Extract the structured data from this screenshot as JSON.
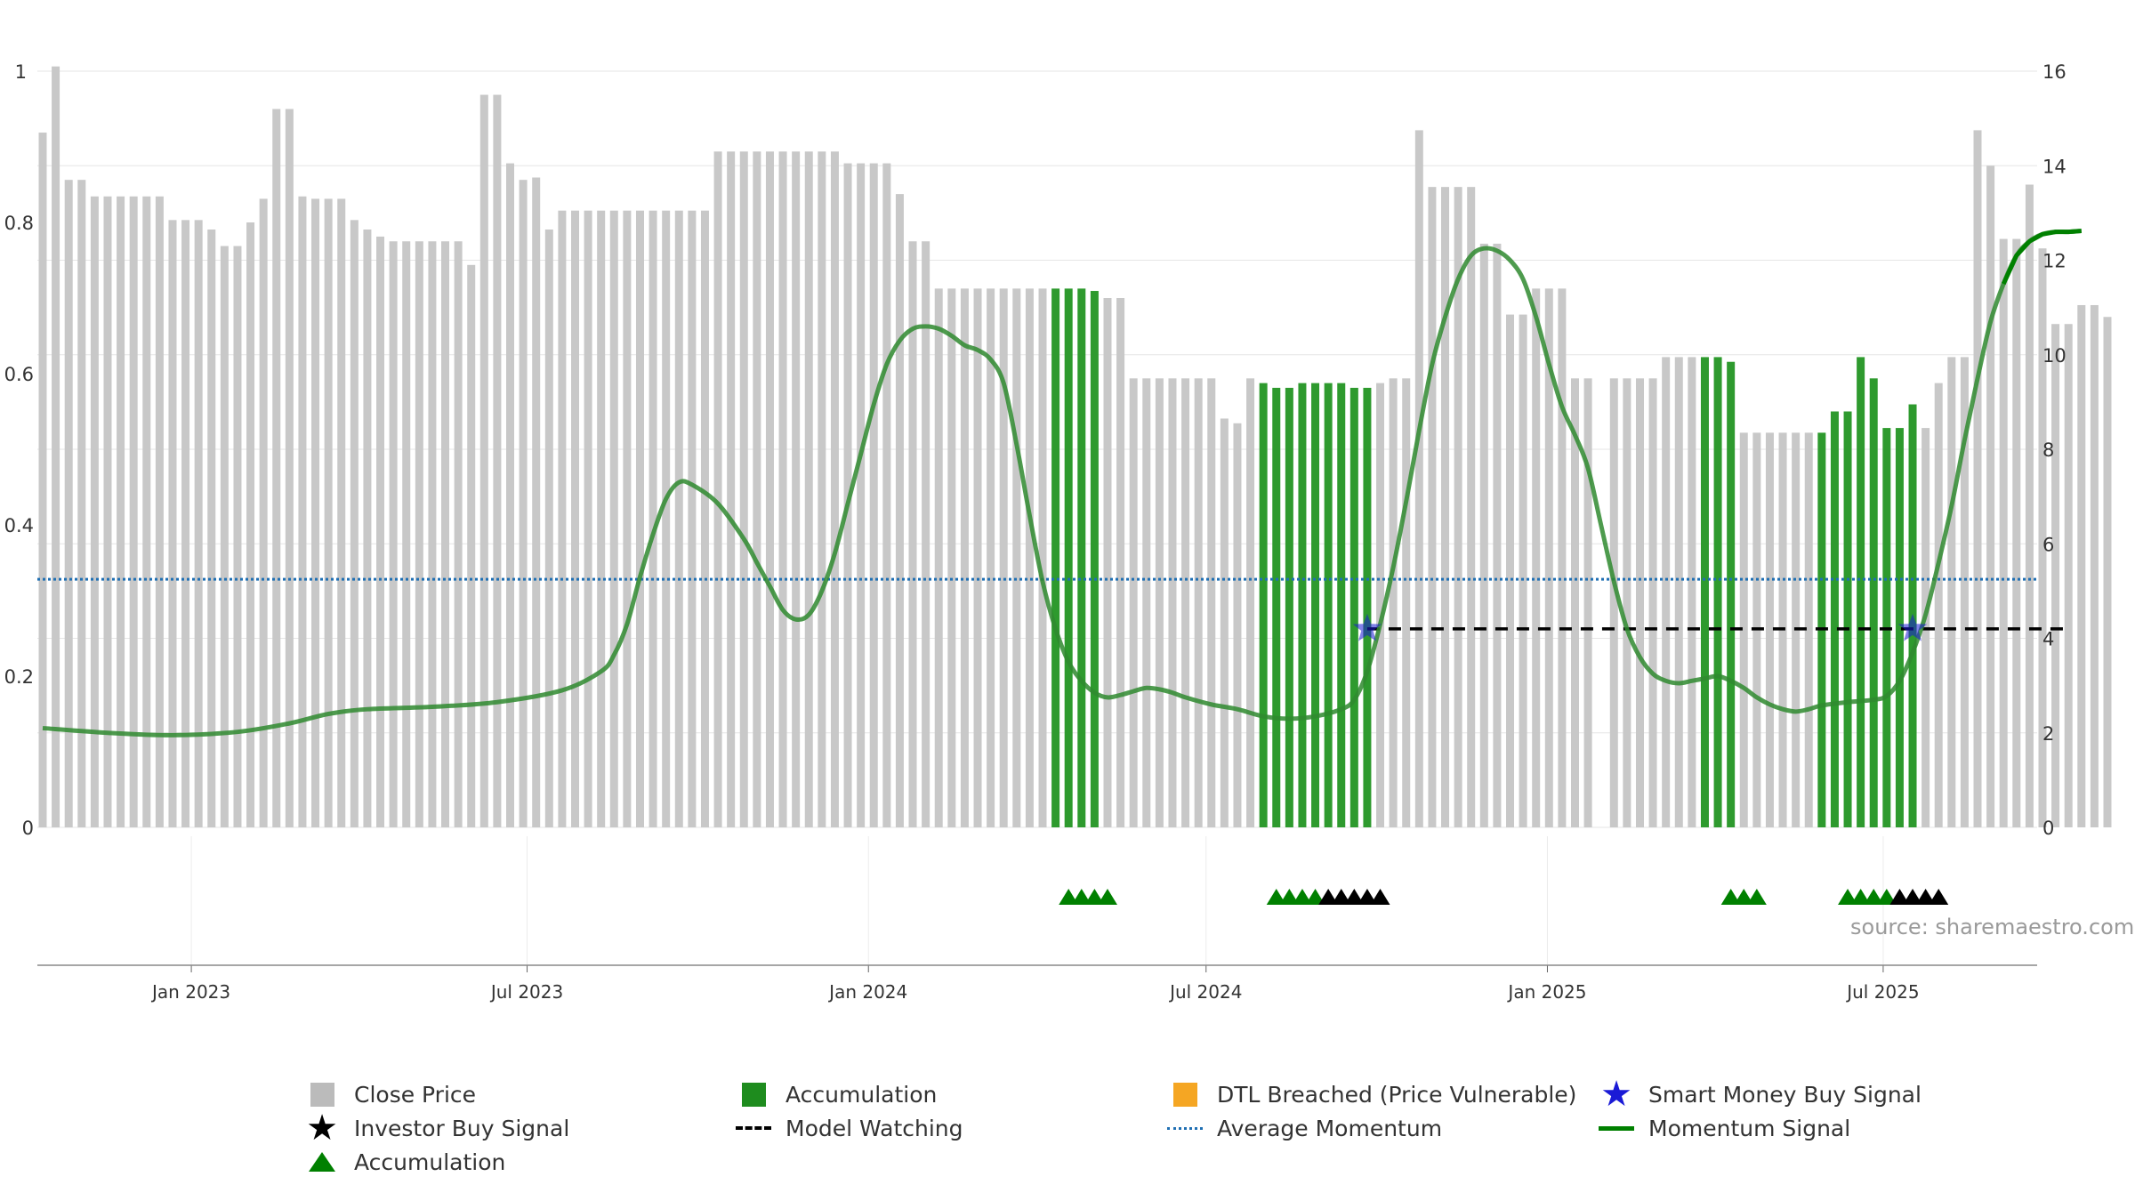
{
  "chart_data": {
    "type": "bar",
    "source_text": "source: sharemaestro.com",
    "x_ticks": [
      "Jan 2023",
      "Jul 2023",
      "Jan 2024",
      "Jul 2024",
      "Jan 2025",
      "Jul 2025"
    ],
    "x_range": [
      "2022-10-10",
      "2025-09-22"
    ],
    "left_axis": {
      "ticks": [
        "0",
        "0.2",
        "0.4",
        "0.6",
        "0.8",
        "1"
      ],
      "ylim": [
        0,
        1
      ]
    },
    "right_axis": {
      "ticks": [
        "0",
        "2",
        "4",
        "6",
        "8",
        "10",
        "12",
        "14",
        "16"
      ],
      "ylim": [
        0,
        16.0
      ]
    },
    "grid": true,
    "bars_first_date": "2022-10-10",
    "bars_interval_days": 7,
    "close_price": [
      14.7,
      16.1,
      13.7,
      13.7,
      13.35,
      13.35,
      13.35,
      13.35,
      13.35,
      13.35,
      12.85,
      12.85,
      12.85,
      12.65,
      12.3,
      12.3,
      12.8,
      13.3,
      15.2,
      15.2,
      13.35,
      13.3,
      13.3,
      13.3,
      12.85,
      12.65,
      12.5,
      12.4,
      12.4,
      12.4,
      12.4,
      12.4,
      12.4,
      11.9,
      15.5,
      15.5,
      14.05,
      13.7,
      13.75,
      12.65,
      13.05,
      13.05,
      13.05,
      13.05,
      13.05,
      13.05,
      13.05,
      13.05,
      13.05,
      13.05,
      13.05,
      13.05,
      14.3,
      14.3,
      14.3,
      14.3,
      14.3,
      14.3,
      14.3,
      14.3,
      14.3,
      14.3,
      14.05,
      14.05,
      14.05,
      14.05,
      13.4,
      12.4,
      12.4,
      11.4,
      11.4,
      11.4,
      11.4,
      11.4,
      11.4,
      11.4,
      11.4,
      11.4,
      11.4,
      11.4,
      11.4,
      11.35,
      11.2,
      11.2,
      9.5,
      9.5,
      9.5,
      9.5,
      9.5,
      9.5,
      9.5,
      8.65,
      8.55,
      9.5,
      9.4,
      9.3,
      9.3,
      9.4,
      9.4,
      9.4,
      9.4,
      9.3,
      9.3,
      9.4,
      9.5,
      9.5,
      14.75,
      13.55,
      13.55,
      13.55,
      13.55,
      12.35,
      12.35,
      10.85,
      10.85,
      11.4,
      11.4,
      11.4,
      9.5,
      9.5,
      0,
      9.5,
      9.5,
      9.5,
      9.5,
      9.95,
      9.95,
      9.95,
      9.95,
      9.95,
      9.85,
      8.35,
      8.35,
      8.35,
      8.35,
      8.35,
      8.35,
      8.35,
      8.8,
      8.8,
      9.95,
      9.5,
      8.45,
      8.45,
      8.95,
      8.45,
      9.4,
      9.95,
      9.95,
      14.75,
      14.0,
      12.45,
      12.45,
      13.6,
      12.25,
      10.65,
      10.65,
      11.05,
      11.05,
      10.8
    ],
    "accumulation_bar_ranges": [
      [
        78,
        81
      ],
      [
        94,
        102
      ],
      [
        128,
        130
      ],
      [
        137,
        144
      ]
    ],
    "momentum_signal": [
      [
        0,
        2.1
      ],
      [
        5,
        2.0
      ],
      [
        10,
        1.95
      ],
      [
        15,
        2.02
      ],
      [
        19,
        2.2
      ],
      [
        22,
        2.4
      ],
      [
        25,
        2.5
      ],
      [
        30,
        2.55
      ],
      [
        35,
        2.65
      ],
      [
        40,
        2.9
      ],
      [
        43,
        3.3
      ],
      [
        44,
        3.65
      ],
      [
        45,
        4.3
      ],
      [
        46,
        5.3
      ],
      [
        47,
        6.2
      ],
      [
        48,
        6.95
      ],
      [
        49,
        7.3
      ],
      [
        50,
        7.25
      ],
      [
        52,
        6.85
      ],
      [
        54,
        6.1
      ],
      [
        55,
        5.6
      ],
      [
        56,
        5.1
      ],
      [
        57,
        4.6
      ],
      [
        58,
        4.4
      ],
      [
        59,
        4.5
      ],
      [
        60,
        5.0
      ],
      [
        61,
        5.8
      ],
      [
        62,
        6.85
      ],
      [
        63,
        7.9
      ],
      [
        64,
        8.95
      ],
      [
        65,
        9.8
      ],
      [
        66,
        10.3
      ],
      [
        67,
        10.55
      ],
      [
        68,
        10.6
      ],
      [
        69,
        10.55
      ],
      [
        70,
        10.4
      ],
      [
        71,
        10.2
      ],
      [
        72,
        10.1
      ],
      [
        73,
        9.9
      ],
      [
        74,
        9.4
      ],
      [
        75,
        8.1
      ],
      [
        76,
        6.6
      ],
      [
        77,
        5.2
      ],
      [
        78,
        4.2
      ],
      [
        79,
        3.5
      ],
      [
        80,
        3.1
      ],
      [
        81,
        2.85
      ],
      [
        82,
        2.75
      ],
      [
        83,
        2.8
      ],
      [
        84,
        2.88
      ],
      [
        85,
        2.95
      ],
      [
        86,
        2.92
      ],
      [
        87,
        2.85
      ],
      [
        88,
        2.75
      ],
      [
        90,
        2.6
      ],
      [
        92,
        2.5
      ],
      [
        94,
        2.35
      ],
      [
        96,
        2.3
      ],
      [
        98,
        2.35
      ],
      [
        100,
        2.5
      ],
      [
        101,
        2.7
      ],
      [
        102,
        3.3
      ],
      [
        103,
        4.3
      ],
      [
        104,
        5.5
      ],
      [
        105,
        6.9
      ],
      [
        106,
        8.4
      ],
      [
        107,
        9.8
      ],
      [
        108,
        10.8
      ],
      [
        109,
        11.6
      ],
      [
        110,
        12.1
      ],
      [
        111,
        12.25
      ],
      [
        112,
        12.2
      ],
      [
        113,
        12.0
      ],
      [
        114,
        11.6
      ],
      [
        115,
        10.8
      ],
      [
        116,
        9.8
      ],
      [
        117,
        8.9
      ],
      [
        118,
        8.3
      ],
      [
        119,
        7.6
      ],
      [
        120,
        6.4
      ],
      [
        121,
        5.2
      ],
      [
        122,
        4.2
      ],
      [
        123,
        3.6
      ],
      [
        124,
        3.25
      ],
      [
        125,
        3.1
      ],
      [
        126,
        3.05
      ],
      [
        127,
        3.1
      ],
      [
        128,
        3.15
      ],
      [
        129,
        3.2
      ],
      [
        130,
        3.1
      ],
      [
        131,
        2.95
      ],
      [
        132,
        2.75
      ],
      [
        133,
        2.6
      ],
      [
        134,
        2.5
      ],
      [
        135,
        2.45
      ],
      [
        136,
        2.5
      ],
      [
        137,
        2.58
      ],
      [
        139,
        2.65
      ],
      [
        141,
        2.7
      ],
      [
        142,
        2.78
      ],
      [
        143,
        3.1
      ],
      [
        144,
        3.7
      ],
      [
        145,
        4.5
      ],
      [
        146,
        5.6
      ],
      [
        147,
        6.8
      ],
      [
        148,
        8.2
      ],
      [
        149,
        9.5
      ],
      [
        150,
        10.7
      ],
      [
        151,
        11.5
      ],
      [
        152,
        12.1
      ],
      [
        153,
        12.4
      ],
      [
        154,
        12.55
      ],
      [
        155,
        12.6
      ],
      [
        156,
        12.6
      ],
      [
        157,
        12.62
      ]
    ],
    "average_momentum": 5.25,
    "model_watching_level": 4.2,
    "model_watching_ranges": [
      [
        102,
        156
      ]
    ],
    "smart_money_buy_signals": [
      [
        102,
        4.2
      ],
      [
        144,
        4.2
      ]
    ],
    "accumulation_triangles": [
      79,
      80,
      81,
      82,
      95,
      96,
      97,
      98,
      130,
      131,
      132,
      139,
      140,
      141,
      142
    ],
    "investor_buy_signal_triangles": [
      99,
      100,
      101,
      102,
      103,
      143,
      144,
      145,
      146
    ],
    "colors": {
      "close_price": "#c8c8c8",
      "accumulation": "#2e9a2e",
      "momentum": "#2f8a2f",
      "momentum_final": "#008000",
      "average_momentum": "#1f6fb3",
      "model_watching": "#000000",
      "smart_money": "#1a1ad6",
      "dtl_breached": "#f5a623",
      "investor_buy": "#000000"
    }
  },
  "legend": {
    "close_price": "Close Price",
    "accumulation_bar": "Accumulation",
    "dtl_breached": "DTL Breached (Price Vulnerable)",
    "smart_money": "Smart Money Buy Signal",
    "investor_buy": "Investor Buy Signal",
    "model_watching": "Model Watching",
    "average_momentum": "Average Momentum",
    "momentum_signal": "Momentum Signal",
    "accumulation_marker": "Accumulation"
  }
}
